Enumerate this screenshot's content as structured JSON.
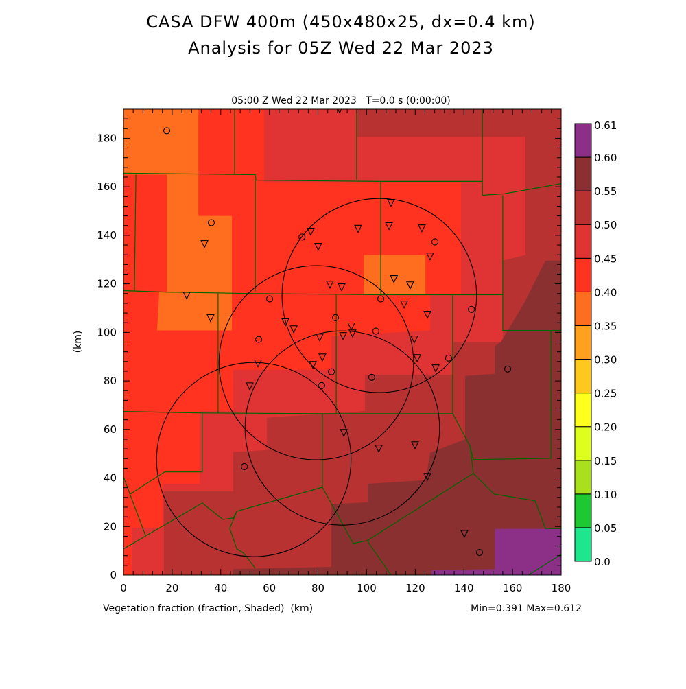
{
  "title": {
    "line1": "CASA DFW 400m (450x480x25, dx=0.4 km)",
    "line2": "Analysis for 05Z Wed 22 Mar 2023"
  },
  "subtitle": "05:00 Z Wed 22 Mar 2023   T=0.0 s (0:00:00)",
  "footer": {
    "variable": "Vegetation fraction (fraction, Shaded)  (km)",
    "minmax": "Min=0.391 Max=0.612"
  },
  "chart_data": {
    "type": "heatmap",
    "xlabel": "(km)",
    "ylabel": "(km)",
    "xlim": [
      0,
      180
    ],
    "ylim": [
      0,
      192
    ],
    "xticks": [
      "0",
      "20",
      "40",
      "60",
      "80",
      "100",
      "120",
      "140",
      "160",
      "180"
    ],
    "yticks": [
      "0",
      "20",
      "40",
      "60",
      "80",
      "100",
      "120",
      "140",
      "160",
      "180"
    ],
    "colorbar": {
      "labels": [
        "0.0",
        "0.05",
        "0.10",
        "0.15",
        "0.20",
        "0.25",
        "0.30",
        "0.35",
        "0.40",
        "0.45",
        "0.50",
        "0.55",
        "0.60",
        "0.61"
      ],
      "colors": [
        "#1EE68C",
        "#1EC832",
        "#A8E01E",
        "#DCFF1E",
        "#FFFF1E",
        "#FFC81E",
        "#FFA01E",
        "#FF6E1E",
        "#FF3320",
        "#E03434",
        "#B83232",
        "#8B3030",
        "#8B2F87"
      ]
    },
    "regions": [
      {
        "bin": 10,
        "points": [
          [
            0,
            0
          ],
          [
            180,
            0
          ],
          [
            180,
            192
          ],
          [
            0,
            192
          ]
        ]
      },
      {
        "bin": 9,
        "points": [
          [
            57.8,
            192
          ],
          [
            95.9,
            192
          ],
          [
            95.9,
            180.6
          ],
          [
            165.3,
            180.6
          ],
          [
            165.3,
            131.9
          ],
          [
            156,
            129.6
          ],
          [
            156,
            96
          ],
          [
            135.7,
            96
          ],
          [
            135.7,
            82.6
          ],
          [
            99.3,
            82.6
          ],
          [
            99.3,
            67.6
          ],
          [
            59,
            64.8
          ],
          [
            59,
            51.5
          ],
          [
            45.1,
            50.7
          ],
          [
            45.1,
            34.5
          ],
          [
            16.6,
            34.5
          ],
          [
            16.6,
            0
          ],
          [
            3.4,
            0
          ],
          [
            3.4,
            19.5
          ],
          [
            0,
            19.5
          ],
          [
            0,
            192
          ]
        ]
      },
      {
        "bin": 8,
        "points": [
          [
            0,
            192
          ],
          [
            57.8,
            192
          ],
          [
            57.8,
            161.9
          ],
          [
            138.8,
            161.9
          ],
          [
            138.8,
            115.8
          ],
          [
            126.1,
            115.8
          ],
          [
            126.1,
            100.8
          ],
          [
            85.5,
            98.5
          ],
          [
            85.5,
            84.6
          ],
          [
            45.1,
            84.6
          ],
          [
            45.1,
            67.6
          ],
          [
            31.3,
            67.6
          ],
          [
            31.3,
            37.6
          ],
          [
            16.1,
            37.6
          ],
          [
            16.1,
            19.5
          ],
          [
            3.4,
            19.5
          ],
          [
            3.4,
            0
          ],
          [
            0,
            0
          ]
        ]
      },
      {
        "bin": 7,
        "points": [
          [
            0,
            192
          ],
          [
            30.8,
            192
          ],
          [
            30.8,
            148
          ],
          [
            44.6,
            148
          ],
          [
            44.6,
            100.8
          ],
          [
            13.8,
            100.8
          ],
          [
            14.7,
            116.6
          ],
          [
            17.8,
            116.6
          ],
          [
            17.8,
            165
          ],
          [
            0,
            165
          ]
        ]
      },
      {
        "bin": 7,
        "points": [
          [
            98.8,
            131.9
          ],
          [
            124.2,
            131.9
          ],
          [
            124.2,
            115.8
          ],
          [
            98.8,
            115.8
          ]
        ]
      },
      {
        "bin": 11,
        "points": [
          [
            180,
            129.6
          ],
          [
            173.5,
            129.6
          ],
          [
            165.1,
            112.7
          ],
          [
            155.2,
            96
          ],
          [
            152.7,
            94.3
          ],
          [
            152.7,
            82.9
          ],
          [
            140.5,
            82.1
          ],
          [
            140.5,
            56
          ],
          [
            126.1,
            50.4
          ],
          [
            124.2,
            39.1
          ],
          [
            100.5,
            37.6
          ],
          [
            100.5,
            30
          ],
          [
            85.5,
            29.2
          ],
          [
            85.5,
            3.4
          ],
          [
            45.1,
            2.5
          ],
          [
            45.1,
            0
          ],
          [
            180,
            0
          ]
        ]
      },
      {
        "bin": 12,
        "points": [
          [
            152.7,
            19
          ],
          [
            180,
            19
          ],
          [
            180,
            0
          ],
          [
            126.7,
            0
          ],
          [
            126.7,
            2
          ],
          [
            152.7,
            2.5
          ]
        ]
      }
    ],
    "county_lines": [
      [
        [
          0,
          165.6
        ],
        [
          54.2,
          165
        ],
        [
          54.5,
          162.7
        ],
        [
          105.8,
          162.2
        ],
        [
          147.6,
          162.2
        ]
      ],
      [
        [
          45.7,
          192
        ],
        [
          45.7,
          165
        ]
      ],
      [
        [
          95.9,
          192
        ],
        [
          95.9,
          163
        ]
      ],
      [
        [
          147.6,
          192
        ],
        [
          147.6,
          156.5
        ],
        [
          156.6,
          157.1
        ],
        [
          180,
          161.3
        ]
      ],
      [
        [
          5.1,
          165
        ],
        [
          4.5,
          117.2
        ]
      ],
      [
        [
          54.2,
          163
        ],
        [
          54.2,
          116.9
        ]
      ],
      [
        [
          0,
          117.2
        ],
        [
          16.9,
          116.6
        ],
        [
          54.2,
          116
        ],
        [
          105.8,
          115.5
        ],
        [
          156,
          115.5
        ]
      ],
      [
        [
          105.8,
          162.2
        ],
        [
          105.8,
          115.5
        ]
      ],
      [
        [
          156,
          156.5
        ],
        [
          156,
          100.8
        ],
        [
          180,
          100.8
        ]
      ],
      [
        [
          38.9,
          116
        ],
        [
          38.9,
          66.5
        ]
      ],
      [
        [
          87.5,
          115.5
        ],
        [
          87.5,
          66.5
        ]
      ],
      [
        [
          135.4,
          115.5
        ],
        [
          135.4,
          66.5
        ],
        [
          142.5,
          53.2
        ],
        [
          143.9,
          47.6
        ],
        [
          175.8,
          48.1
        ],
        [
          175.8,
          100.8
        ]
      ],
      [
        [
          0,
          67.4
        ],
        [
          32.4,
          66.8
        ],
        [
          81.8,
          66.5
        ],
        [
          135.4,
          66.5
        ]
      ],
      [
        [
          32.4,
          66.8
        ],
        [
          32.4,
          42.5
        ],
        [
          16.9,
          42.5
        ],
        [
          2.8,
          33.4
        ]
      ],
      [
        [
          0,
          40.5
        ],
        [
          9,
          16.4
        ]
      ],
      [
        [
          0,
          10.8
        ],
        [
          32.4,
          29.7
        ],
        [
          40.9,
          22.9
        ],
        [
          45.1,
          23.5
        ],
        [
          46.6,
          26.3
        ],
        [
          81.8,
          36.2
        ],
        [
          81.8,
          66.5
        ]
      ],
      [
        [
          81.8,
          36.2
        ],
        [
          94.5,
          13
        ],
        [
          100.2,
          14.2
        ],
        [
          143.9,
          41.9
        ]
      ],
      [
        [
          100.2,
          14.2
        ],
        [
          110,
          0
        ]
      ],
      [
        [
          46.6,
          26.3
        ],
        [
          43.7,
          19.2
        ],
        [
          46.6,
          10.8
        ],
        [
          49.4,
          9.1
        ],
        [
          54.2,
          2.8
        ]
      ],
      [
        [
          142.5,
          53.2
        ],
        [
          143.9,
          41.9
        ],
        [
          152.4,
          33.4
        ],
        [
          169.3,
          30.6
        ],
        [
          173.5,
          19.2
        ],
        [
          180,
          19.2
        ]
      ],
      [
        [
          166.5,
          0
        ],
        [
          180,
          8.5
        ]
      ]
    ],
    "range_rings": [
      {
        "center": [
          105.2,
          115.2
        ],
        "radius_km": 40
      },
      {
        "center": [
          79.3,
          87.5
        ],
        "radius_km": 40
      },
      {
        "center": [
          90,
          60.6
        ],
        "radius_km": 40
      },
      {
        "center": [
          53.6,
          47.6
        ],
        "radius_km": 40
      }
    ],
    "triangle_stations": [
      [
        88.9,
        191.9
      ],
      [
        110,
        153.4
      ],
      [
        77,
        141.5
      ],
      [
        96.5,
        142.7
      ],
      [
        109.2,
        143.8
      ],
      [
        122.7,
        142.9
      ],
      [
        80.1,
        135.3
      ],
      [
        126.1,
        131.3
      ],
      [
        111.2,
        122
      ],
      [
        84.9,
        119.7
      ],
      [
        89.7,
        118.6
      ],
      [
        117.9,
        119.4
      ],
      [
        26,
        115.2
      ],
      [
        115.4,
        111.5
      ],
      [
        66.6,
        104.2
      ],
      [
        70,
        101.3
      ],
      [
        35.8,
        105.9
      ],
      [
        125,
        107.3
      ],
      [
        93.7,
        102.5
      ],
      [
        80.7,
        97.9
      ],
      [
        90.3,
        98.5
      ],
      [
        94.2,
        99.6
      ],
      [
        119.6,
        97.1
      ],
      [
        55.3,
        87.2
      ],
      [
        77.9,
        86.6
      ],
      [
        81.8,
        89.7
      ],
      [
        120.8,
        89.4
      ],
      [
        128.4,
        85.2
      ],
      [
        51.9,
        77.8
      ],
      [
        90.6,
        58.6
      ],
      [
        105,
        52.1
      ],
      [
        119.9,
        53.5
      ],
      [
        125,
        40.5
      ],
      [
        140.2,
        17
      ],
      [
        33.3,
        136.4
      ]
    ],
    "circle_stations": [
      [
        17.8,
        183.1
      ],
      [
        36.1,
        145.2
      ],
      [
        73.4,
        139.3
      ],
      [
        128.1,
        137.3
      ],
      [
        60.1,
        113.8
      ],
      [
        105.8,
        113.8
      ],
      [
        143.1,
        109.5
      ],
      [
        87.2,
        106.1
      ],
      [
        103.8,
        100.5
      ],
      [
        55.6,
        97.1
      ],
      [
        133.7,
        89.4
      ],
      [
        85.5,
        83.8
      ],
      [
        102.1,
        81.5
      ],
      [
        81.5,
        78.1
      ],
      [
        158,
        84.9
      ],
      [
        49.7,
        44.7
      ],
      [
        146.4,
        9.3
      ]
    ]
  }
}
